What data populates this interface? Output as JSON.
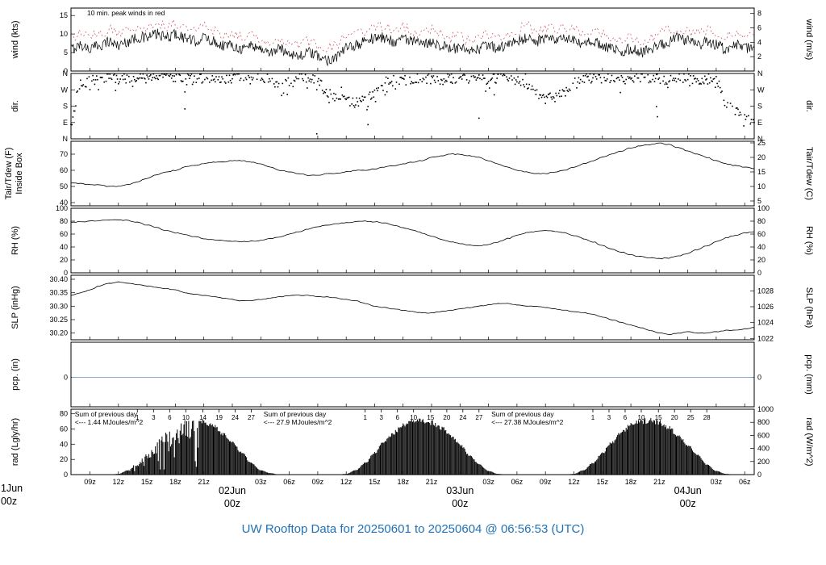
{
  "figure": {
    "title": "UW Rooftop Data for 20250601  to  20250604 @ 06:56:53  (UTC)",
    "colors": {
      "trace": "#000000",
      "peak": "#cc4455",
      "peak_note": "#cc3333",
      "date": "#bb3333",
      "annotation": "#aa22aa",
      "title": "#2272b5",
      "pcp": "#7b9fd4",
      "frame": "#000000"
    }
  },
  "time_axis": {
    "start": 7,
    "end": 79,
    "tick_step_hours": 3,
    "tick_labels": [
      {
        "h": 9,
        "t": "09z"
      },
      {
        "h": 12,
        "t": "12z"
      },
      {
        "h": 15,
        "t": "15z"
      },
      {
        "h": 18,
        "t": "18z"
      },
      {
        "h": 21,
        "t": "21z"
      },
      {
        "h": 27,
        "t": "03z"
      },
      {
        "h": 30,
        "t": "06z"
      },
      {
        "h": 33,
        "t": "09z"
      },
      {
        "h": 36,
        "t": "12z"
      },
      {
        "h": 39,
        "t": "15z"
      },
      {
        "h": 42,
        "t": "18z"
      },
      {
        "h": 45,
        "t": "21z"
      },
      {
        "h": 51,
        "t": "03z"
      },
      {
        "h": 54,
        "t": "06z"
      },
      {
        "h": 57,
        "t": "09z"
      },
      {
        "h": 60,
        "t": "12z"
      },
      {
        "h": 63,
        "t": "15z"
      },
      {
        "h": 66,
        "t": "18z"
      },
      {
        "h": 69,
        "t": "21z"
      },
      {
        "h": 75,
        "t": "03z"
      },
      {
        "h": 78,
        "t": "06z"
      }
    ],
    "date_labels": [
      {
        "h": 0,
        "t": "1Jun",
        "sub": "00z",
        "clip": true
      },
      {
        "h": 24,
        "t": "02Jun",
        "sub": "00z"
      },
      {
        "h": 48,
        "t": "03Jun",
        "sub": "00z"
      },
      {
        "h": 72,
        "t": "04Jun",
        "sub": "00z"
      }
    ]
  },
  "chart_data": [
    {
      "id": "wind",
      "type": "line",
      "left_label": "wind (kts)",
      "right_label": "wind (m/s)",
      "ylim": [
        0,
        17
      ],
      "left_ticks": [
        {
          "v": 0,
          "t": "0"
        },
        {
          "v": 5,
          "t": "5"
        },
        {
          "v": 10,
          "t": "10"
        },
        {
          "v": 15,
          "t": "15"
        }
      ],
      "right_ticks": [
        {
          "v": 3.89,
          "t": "2"
        },
        {
          "v": 7.78,
          "t": "4"
        },
        {
          "v": 11.66,
          "t": "6"
        },
        {
          "v": 15.55,
          "t": "8"
        }
      ],
      "annotation": {
        "text": "10 min. peak winds in red",
        "h": 8.7
      },
      "series": [
        {
          "name": "wind_avg_kts",
          "color": "#000000",
          "noise": 1.5,
          "x_start": 7,
          "x_step": 1,
          "values": [
            6,
            7,
            6,
            7,
            8,
            7,
            8,
            9,
            9,
            10,
            9,
            10,
            9,
            8,
            9,
            8,
            7,
            7,
            6,
            7,
            6,
            5,
            6,
            5,
            4,
            5,
            4,
            3,
            4,
            6,
            7,
            8,
            9,
            9,
            8,
            9,
            8,
            7,
            8,
            7,
            6,
            6,
            5,
            6,
            7,
            6,
            7,
            8,
            9,
            8,
            9,
            8,
            9,
            8,
            7,
            8,
            7,
            6,
            5,
            6,
            5,
            6,
            7,
            8,
            9,
            8,
            7,
            8,
            7,
            6,
            7,
            6,
            7
          ]
        },
        {
          "name": "wind_peak_kts",
          "color": "#cc4455",
          "dashed": true,
          "noise": 1.5,
          "x_start": 7,
          "x_step": 1,
          "values": [
            9,
            10,
            9,
            10,
            11,
            10,
            11,
            12,
            12,
            13,
            12,
            13,
            12,
            11,
            12,
            11,
            10,
            10,
            9,
            10,
            9,
            8,
            9,
            8,
            7,
            8,
            7,
            6,
            7,
            9,
            10,
            11,
            12,
            12,
            11,
            12,
            11,
            10,
            11,
            10,
            9,
            9,
            8,
            9,
            10,
            9,
            10,
            11,
            12,
            11,
            12,
            11,
            12,
            11,
            10,
            11,
            10,
            9,
            8,
            9,
            8,
            9,
            10,
            11,
            12,
            11,
            10,
            11,
            10,
            9,
            10,
            9,
            10
          ]
        }
      ]
    },
    {
      "id": "dir",
      "type": "scatter",
      "left_label": "dir.",
      "right_label": "dir.",
      "ylim": [
        0,
        360
      ],
      "left_ticks": [
        {
          "v": 0,
          "t": "N"
        },
        {
          "v": 90,
          "t": "E"
        },
        {
          "v": 180,
          "t": "S"
        },
        {
          "v": 270,
          "t": "W"
        },
        {
          "v": 360,
          "t": "N"
        }
      ],
      "right_ticks": [
        {
          "v": 0,
          "t": "N"
        },
        {
          "v": 90,
          "t": "E"
        },
        {
          "v": 180,
          "t": "S"
        },
        {
          "v": 270,
          "t": "W"
        },
        {
          "v": 360,
          "t": "N"
        }
      ],
      "series": [
        {
          "name": "wind_dir_deg",
          "color": "#000000",
          "scatter_spread_deg": 55,
          "x_start": 7,
          "x_step": 1,
          "values": [
            100,
            300,
            320,
            330,
            340,
            330,
            335,
            340,
            330,
            335,
            340,
            330,
            325,
            330,
            335,
            330,
            320,
            330,
            335,
            330,
            320,
            310,
            300,
            310,
            320,
            330,
            320,
            250,
            230,
            210,
            200,
            220,
            250,
            280,
            300,
            320,
            330,
            335,
            330,
            325,
            330,
            335,
            330,
            325,
            330,
            335,
            330,
            320,
            310,
            250,
            220,
            230,
            260,
            300,
            320,
            330,
            335,
            330,
            325,
            330,
            335,
            330,
            320,
            330,
            335,
            330,
            325,
            330,
            320,
            200,
            150,
            120,
            100
          ]
        }
      ]
    },
    {
      "id": "temp",
      "type": "line",
      "left_label": [
        "Tair/Tdew (F)",
        "Inside Box"
      ],
      "right_label": "Tair/Tdew (C)",
      "ylim": [
        38,
        78
      ],
      "left_ticks": [
        {
          "v": 40,
          "t": "40"
        },
        {
          "v": 50,
          "t": "50"
        },
        {
          "v": 60,
          "t": "60"
        },
        {
          "v": 70,
          "t": "70"
        }
      ],
      "right_ticks": [
        {
          "v": 41,
          "t": "5"
        },
        {
          "v": 50,
          "t": "10"
        },
        {
          "v": 59,
          "t": "15"
        },
        {
          "v": 68,
          "t": "20"
        },
        {
          "v": 77,
          "t": "25"
        }
      ],
      "series": [
        {
          "name": "tair_f",
          "color": "#000000",
          "noise": 0.25,
          "x_start": 7,
          "x_step": 1,
          "values": [
            52,
            52,
            51,
            51,
            50,
            50,
            51,
            53,
            55,
            57,
            59,
            60,
            62,
            63,
            64,
            65,
            65,
            66,
            66,
            65,
            64,
            62,
            60,
            59,
            58,
            57,
            57,
            58,
            58,
            59,
            60,
            60,
            61,
            62,
            63,
            64,
            65,
            66,
            68,
            69,
            70,
            70,
            69,
            68,
            66,
            64,
            62,
            60,
            59,
            58,
            58,
            59,
            60,
            62,
            64,
            66,
            68,
            70,
            72,
            74,
            75,
            76,
            77,
            76,
            74,
            72,
            70,
            68,
            66,
            64,
            63,
            62,
            61
          ]
        }
      ]
    },
    {
      "id": "rh",
      "type": "line",
      "left_label": "RH (%)",
      "right_label": "RH (%)",
      "ylim": [
        0,
        100
      ],
      "left_ticks": [
        {
          "v": 0,
          "t": "0"
        },
        {
          "v": 20,
          "t": "20"
        },
        {
          "v": 40,
          "t": "40"
        },
        {
          "v": 60,
          "t": "60"
        },
        {
          "v": 80,
          "t": "80"
        },
        {
          "v": 100,
          "t": "100"
        }
      ],
      "right_ticks": [
        {
          "v": 0,
          "t": "0"
        },
        {
          "v": 20,
          "t": "20"
        },
        {
          "v": 40,
          "t": "40"
        },
        {
          "v": 60,
          "t": "60"
        },
        {
          "v": 80,
          "t": "80"
        },
        {
          "v": 100,
          "t": "100"
        }
      ],
      "series": [
        {
          "name": "rh_pct",
          "color": "#000000",
          "noise": 0.7,
          "x_start": 7,
          "x_step": 1,
          "values": [
            78,
            79,
            80,
            81,
            82,
            82,
            81,
            78,
            74,
            70,
            66,
            62,
            59,
            56,
            53,
            51,
            50,
            49,
            48,
            49,
            50,
            53,
            56,
            60,
            64,
            68,
            71,
            74,
            76,
            78,
            79,
            80,
            79,
            77,
            74,
            70,
            66,
            62,
            57,
            52,
            48,
            45,
            43,
            42,
            44,
            48,
            53,
            58,
            62,
            64,
            65,
            64,
            62,
            58,
            53,
            48,
            42,
            37,
            32,
            28,
            25,
            23,
            22,
            23,
            26,
            30,
            36,
            42,
            48,
            54,
            58,
            62,
            64
          ]
        }
      ]
    },
    {
      "id": "slp",
      "type": "line",
      "left_label": "SLP (inHg)",
      "right_label": "SLP (hPa)",
      "ylim": [
        30.175,
        30.415
      ],
      "left_ticks": [
        {
          "v": 30.2,
          "t": "30.20"
        },
        {
          "v": 30.25,
          "t": "30.25"
        },
        {
          "v": 30.3,
          "t": "30.30"
        },
        {
          "v": 30.35,
          "t": "30.35"
        },
        {
          "v": 30.4,
          "t": "30.40"
        }
      ],
      "right_ticks": [
        {
          "v": 30.18,
          "t": "1022"
        },
        {
          "v": 30.239,
          "t": "1024"
        },
        {
          "v": 30.298,
          "t": "1026"
        },
        {
          "v": 30.357,
          "t": "1028"
        }
      ],
      "series": [
        {
          "name": "slp_inhg",
          "color": "#000000",
          "noise": 0.0012,
          "x_start": 7,
          "x_step": 1,
          "values": [
            30.34,
            30.35,
            30.36,
            30.375,
            30.385,
            30.39,
            30.385,
            30.38,
            30.375,
            30.37,
            30.365,
            30.36,
            30.35,
            30.345,
            30.34,
            30.335,
            30.33,
            30.325,
            30.32,
            30.32,
            30.325,
            30.33,
            30.335,
            30.34,
            30.34,
            30.34,
            30.335,
            30.335,
            30.33,
            30.325,
            30.32,
            30.31,
            30.3,
            30.295,
            30.29,
            30.285,
            30.28,
            30.275,
            30.275,
            30.28,
            30.285,
            30.29,
            30.295,
            30.3,
            30.305,
            30.31,
            30.31,
            30.305,
            30.3,
            30.3,
            30.295,
            30.29,
            30.285,
            30.28,
            30.275,
            30.27,
            30.26,
            30.25,
            30.24,
            30.23,
            30.22,
            30.21,
            30.2,
            30.195,
            30.2,
            30.205,
            30.2,
            30.2,
            30.205,
            30.21,
            30.21,
            30.215,
            30.22
          ]
        }
      ]
    },
    {
      "id": "pcp",
      "type": "line",
      "left_label": "pcp. (in)",
      "right_label": "pcp. (mm)",
      "ylim": [
        -1,
        1.2
      ],
      "left_ticks": [
        {
          "v": 0,
          "t": "0"
        }
      ],
      "right_ticks": [
        {
          "v": 0,
          "t": "0"
        }
      ],
      "series": [
        {
          "name": "pcp_in",
          "color": "#7b9fd4",
          "constant": 0,
          "x_start": 7,
          "x_step": 1
        }
      ]
    },
    {
      "id": "rad",
      "type": "area",
      "left_label": "rad (Lgly/hr)",
      "right_label": "rad (W/m^2)",
      "ylim": [
        0,
        86
      ],
      "left_ticks": [
        {
          "v": 0,
          "t": "0"
        },
        {
          "v": 20,
          "t": "20"
        },
        {
          "v": 40,
          "t": "40"
        },
        {
          "v": 60,
          "t": "60"
        },
        {
          "v": 80,
          "t": "80"
        }
      ],
      "right_ticks": [
        {
          "v": 0,
          "t": "0"
        },
        {
          "v": 17.2,
          "t": "200"
        },
        {
          "v": 34.4,
          "t": "400"
        },
        {
          "v": 51.6,
          "t": "600"
        },
        {
          "v": 68.8,
          "t": "800"
        },
        {
          "v": 86,
          "t": "1000"
        }
      ],
      "series": [
        {
          "name": "rad_ly_hr",
          "fill": "#000000",
          "cloudy_jagged_hours": [
            13,
            20.5
          ],
          "x_start": 7,
          "x_step": 1,
          "values": [
            0,
            0,
            0,
            0,
            0,
            1,
            6,
            16,
            30,
            45,
            57,
            67,
            73,
            76,
            74,
            67,
            57,
            44,
            30,
            16,
            6,
            2,
            0,
            0,
            0,
            0,
            0,
            0,
            0,
            1,
            6,
            16,
            30,
            45,
            58,
            68,
            73,
            75,
            72,
            65,
            54,
            41,
            27,
            14,
            5,
            1,
            0,
            0,
            0,
            0,
            0,
            0,
            0,
            1,
            6,
            16,
            30,
            45,
            58,
            68,
            73,
            75,
            72,
            65,
            54,
            41,
            27,
            14,
            5,
            1,
            0,
            0,
            0
          ]
        }
      ],
      "top_ticks": [
        {
          "h": 14,
          "t": "1"
        },
        {
          "h": 15.7,
          "t": "3"
        },
        {
          "h": 17.4,
          "t": "6"
        },
        {
          "h": 19.1,
          "t": "10"
        },
        {
          "h": 20.9,
          "t": "14"
        },
        {
          "h": 22.6,
          "t": "19"
        },
        {
          "h": 24.3,
          "t": "24"
        },
        {
          "h": 26,
          "t": "27"
        },
        {
          "h": 38,
          "t": "1"
        },
        {
          "h": 39.7,
          "t": "3"
        },
        {
          "h": 41.4,
          "t": "6"
        },
        {
          "h": 43.1,
          "t": "10"
        },
        {
          "h": 44.9,
          "t": "15"
        },
        {
          "h": 46.6,
          "t": "20"
        },
        {
          "h": 48.3,
          "t": "24"
        },
        {
          "h": 50,
          "t": "27"
        },
        {
          "h": 62,
          "t": "1"
        },
        {
          "h": 63.7,
          "t": "3"
        },
        {
          "h": 65.4,
          "t": "6"
        },
        {
          "h": 67.1,
          "t": "10"
        },
        {
          "h": 68.9,
          "t": "15"
        },
        {
          "h": 70.6,
          "t": "20"
        },
        {
          "h": 72.3,
          "t": "25"
        },
        {
          "h": 74,
          "t": "28"
        }
      ],
      "annotations": [
        {
          "h": 7.4,
          "lines": [
            "Sum of previous day",
            "<--- 1.44 MJoules/m^2"
          ]
        },
        {
          "h": 27.3,
          "lines": [
            "Sum of previous day",
            "<--- 27.9 MJoules/m^2"
          ]
        },
        {
          "h": 51.3,
          "lines": [
            "Sum of previous day",
            "<--- 27.38 MJoules/m^2"
          ]
        }
      ]
    }
  ]
}
